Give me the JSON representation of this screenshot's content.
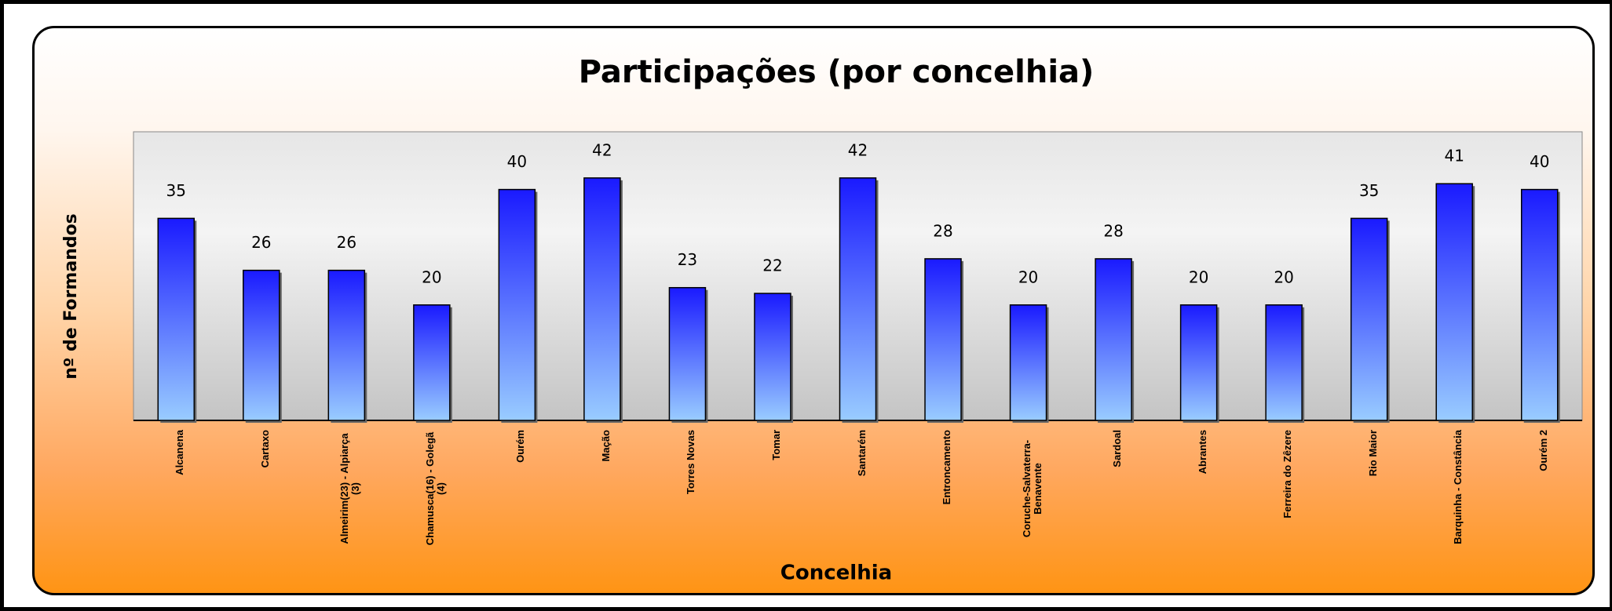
{
  "chart_data": {
    "type": "bar",
    "title": "Participações (por concelhia)",
    "x_label": "Concelhia",
    "y_label": "nº de Formandos",
    "categories": [
      "Alcanena",
      "Cartaxo",
      "Almeirim(23) - Alpiarça (3)",
      "Chamusca(16) - Golegã (4)",
      "Ourém",
      "Mação",
      "Torres Novas",
      "Tomar",
      "Santarém",
      "Entroncamento",
      "Coruche-Salvaterra-Benavente",
      "Sardoal",
      "Abrantes",
      "Ferreira do Zêzere",
      "Rio Maior",
      "Barquinha - Constância",
      "Ourém 2"
    ],
    "values": [
      35,
      26,
      26,
      20,
      40,
      42,
      23,
      22,
      42,
      28,
      20,
      28,
      20,
      20,
      35,
      41,
      40
    ],
    "color": "#1a1aff",
    "ylim": [
      0,
      50
    ]
  }
}
